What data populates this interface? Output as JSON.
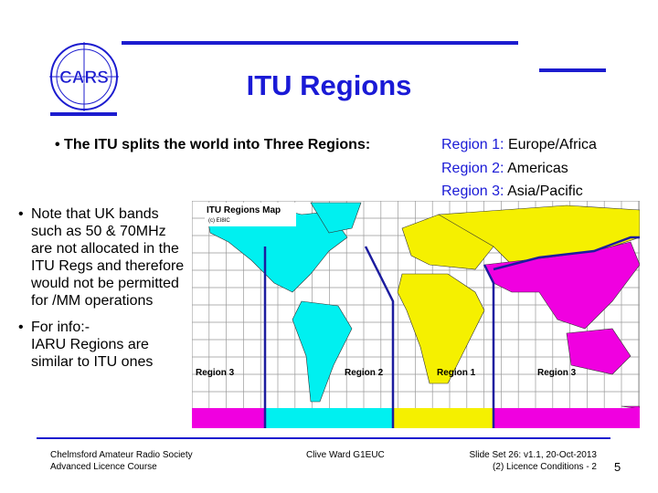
{
  "header": {
    "logo": "CARS",
    "title": "ITU Regions"
  },
  "main_bullet": "The ITU splits the world into Three Regions:",
  "regions": [
    {
      "label": "Region 1:",
      "name": "Europe/Africa"
    },
    {
      "label": "Region 2:",
      "name": "Americas"
    },
    {
      "label": "Region 3:",
      "name": "Asia/Pacific"
    }
  ],
  "map": {
    "title": "ITU Regions Map",
    "credit": "(c) EI8IC",
    "labels": [
      "Region 3",
      "Region 2",
      "Region 1",
      "Region 3"
    ]
  },
  "side_bullets": [
    {
      "lines": [
        "Note that UK bands such as 50 & 70MHz are not allocated in the ITU Regs and therefore would not be permitted for /MM operations"
      ]
    },
    {
      "lines": [
        "For info:-",
        "IARU Regions are similar to ITU ones"
      ]
    }
  ],
  "footer": {
    "left": [
      "Chelmsford Amateur Radio Society",
      "Advanced Licence Course"
    ],
    "center": "Clive Ward G1EUC",
    "right": [
      "Slide Set 26:  v1.1,  20-Oct-2013",
      "(2) Licence Conditions - 2"
    ],
    "page": "5"
  }
}
